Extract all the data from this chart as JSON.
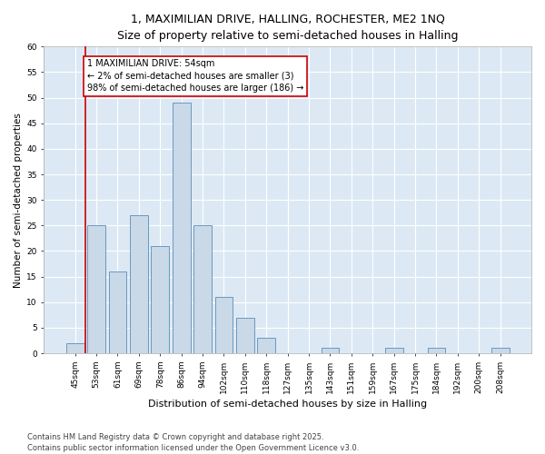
{
  "title": "1, MAXIMILIAN DRIVE, HALLING, ROCHESTER, ME2 1NQ",
  "subtitle": "Size of property relative to semi-detached houses in Halling",
  "xlabel": "Distribution of semi-detached houses by size in Halling",
  "ylabel": "Number of semi-detached properties",
  "categories": [
    "45sqm",
    "53sqm",
    "61sqm",
    "69sqm",
    "78sqm",
    "86sqm",
    "94sqm",
    "102sqm",
    "110sqm",
    "118sqm",
    "127sqm",
    "135sqm",
    "143sqm",
    "151sqm",
    "159sqm",
    "167sqm",
    "175sqm",
    "184sqm",
    "192sqm",
    "200sqm",
    "208sqm"
  ],
  "values": [
    2,
    25,
    16,
    27,
    21,
    49,
    25,
    11,
    7,
    3,
    0,
    0,
    1,
    0,
    0,
    1,
    0,
    1,
    0,
    0,
    1
  ],
  "bar_color": "#c9d9e8",
  "bar_edge_color": "#5b8db8",
  "background_color": "#dce9f5",
  "grid_color": "#ffffff",
  "ylim": [
    0,
    60
  ],
  "yticks": [
    0,
    5,
    10,
    15,
    20,
    25,
    30,
    35,
    40,
    45,
    50,
    55,
    60
  ],
  "property_label": "1 MAXIMILIAN DRIVE: 54sqm",
  "annotation_smaller": "← 2% of semi-detached houses are smaller (3)",
  "annotation_larger": "98% of semi-detached houses are larger (186) →",
  "vline_color": "#cc0000",
  "annotation_box_color": "#cc0000",
  "footer_line1": "Contains HM Land Registry data © Crown copyright and database right 2025.",
  "footer_line2": "Contains public sector information licensed under the Open Government Licence v3.0.",
  "title_fontsize": 9,
  "xlabel_fontsize": 8,
  "ylabel_fontsize": 7.5,
  "tick_fontsize": 6.5,
  "footer_fontsize": 6,
  "annotation_fontsize": 7
}
